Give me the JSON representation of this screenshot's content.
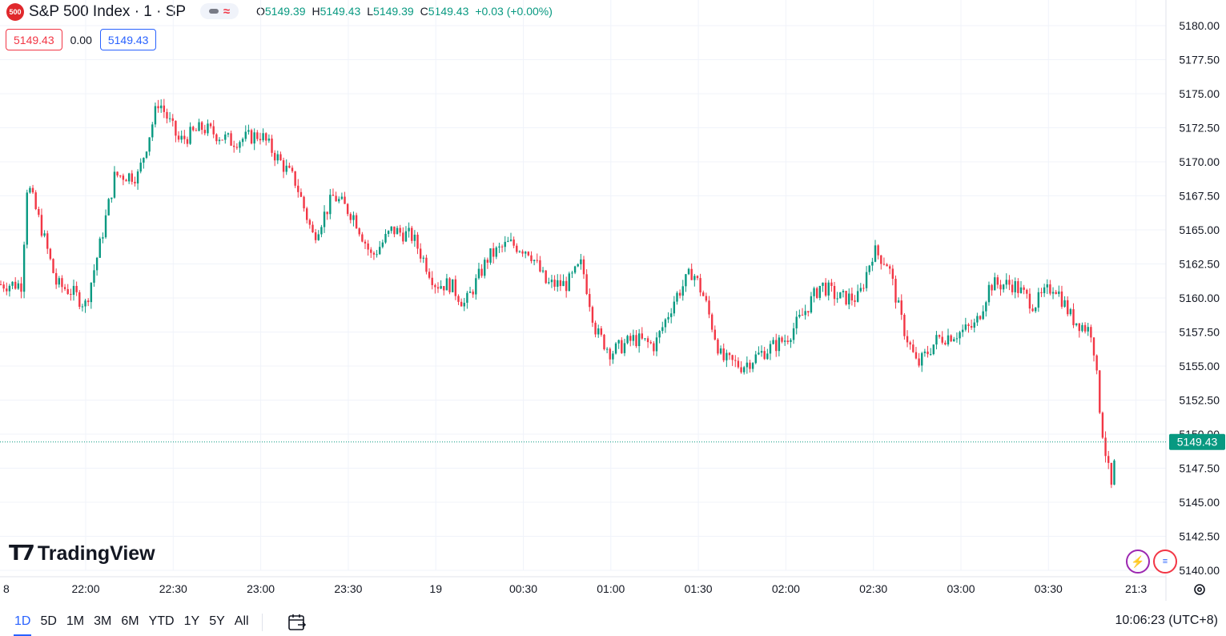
{
  "header": {
    "badge": "500",
    "symbol_title": "S&P 500 Index · 1 · SP",
    "ohlc": [
      {
        "label": "O",
        "value": "5149.39"
      },
      {
        "label": "H",
        "value": "5149.43"
      },
      {
        "label": "L",
        "value": "5149.39"
      },
      {
        "label": "C",
        "value": "5149.43"
      },
      {
        "label": "",
        "value": "+0.03 (+0.00%)"
      }
    ],
    "bid": "5149.43",
    "spread": "0.00",
    "ask": "5149.43"
  },
  "brand": "TradingView",
  "bottom_bar": {
    "ranges": [
      "1D",
      "5D",
      "1M",
      "3M",
      "6M",
      "YTD",
      "1Y",
      "5Y",
      "All"
    ],
    "active_range": "1D",
    "clock": "10:06:23 (UTC+8)"
  },
  "colors": {
    "up": "#089981",
    "down": "#f23645",
    "accent": "#2962ff"
  },
  "chart_data": {
    "type": "candlestick",
    "title": "S&P 500 Index · 1 · SP",
    "y_ticks": [
      "5180.00",
      "5177.50",
      "5175.00",
      "5172.50",
      "5170.00",
      "5167.50",
      "5165.00",
      "5162.50",
      "5160.00",
      "5157.50",
      "5155.00",
      "5152.50",
      "5150.00",
      "5147.50",
      "5145.00",
      "5142.50",
      "5140.00"
    ],
    "ylim": [
      5140.0,
      5180.0
    ],
    "x_ticks": [
      "8",
      "22:00",
      "22:30",
      "23:00",
      "23:30",
      "19",
      "00:30",
      "01:00",
      "01:30",
      "02:00",
      "02:30",
      "03:00",
      "03:30",
      "21:3"
    ],
    "last_price": "5149.43",
    "last_price_value": 5149.43,
    "grid": true,
    "path_points": [
      {
        "t": "21:38",
        "p": 5161.0
      },
      {
        "t": "21:40",
        "p": 5168.5
      },
      {
        "t": "21:45",
        "p": 5165.0
      },
      {
        "t": "21:50",
        "p": 5161.0
      },
      {
        "t": "21:55",
        "p": 5160.5
      },
      {
        "t": "22:00",
        "p": 5159.5
      },
      {
        "t": "22:05",
        "p": 5164.0
      },
      {
        "t": "22:10",
        "p": 5169.0
      },
      {
        "t": "22:18",
        "p": 5169.0
      },
      {
        "t": "22:25",
        "p": 5174.5
      },
      {
        "t": "22:32",
        "p": 5171.5
      },
      {
        "t": "22:40",
        "p": 5172.5
      },
      {
        "t": "22:50",
        "p": 5171.5
      },
      {
        "t": "23:00",
        "p": 5172.0
      },
      {
        "t": "23:05",
        "p": 5170.5
      },
      {
        "t": "23:12",
        "p": 5168.5
      },
      {
        "t": "23:18",
        "p": 5164.5
      },
      {
        "t": "23:25",
        "p": 5167.5
      },
      {
        "t": "23:32",
        "p": 5166.0
      },
      {
        "t": "23:38",
        "p": 5163.0
      },
      {
        "t": "23:45",
        "p": 5165.0
      },
      {
        "t": "23:52",
        "p": 5164.5
      },
      {
        "t": "00:00",
        "p": 5161.0
      },
      {
        "t": "00:05",
        "p": 5161.0
      },
      {
        "t": "00:10",
        "p": 5159.5
      },
      {
        "t": "00:18",
        "p": 5163.0
      },
      {
        "t": "00:25",
        "p": 5164.0
      },
      {
        "t": "00:32",
        "p": 5163.5
      },
      {
        "t": "00:38",
        "p": 5161.0
      },
      {
        "t": "00:45",
        "p": 5161.0
      },
      {
        "t": "00:50",
        "p": 5162.5
      },
      {
        "t": "00:55",
        "p": 5157.5
      },
      {
        "t": "01:00",
        "p": 5156.0
      },
      {
        "t": "01:08",
        "p": 5157.0
      },
      {
        "t": "01:15",
        "p": 5156.5
      },
      {
        "t": "01:22",
        "p": 5160.0
      },
      {
        "t": "01:28",
        "p": 5162.0
      },
      {
        "t": "01:32",
        "p": 5160.0
      },
      {
        "t": "01:38",
        "p": 5155.5
      },
      {
        "t": "01:45",
        "p": 5155.0
      },
      {
        "t": "01:52",
        "p": 5156.0
      },
      {
        "t": "02:00",
        "p": 5157.0
      },
      {
        "t": "02:05",
        "p": 5158.5
      },
      {
        "t": "02:12",
        "p": 5161.0
      },
      {
        "t": "02:18",
        "p": 5160.0
      },
      {
        "t": "02:25",
        "p": 5160.0
      },
      {
        "t": "02:30",
        "p": 5163.5
      },
      {
        "t": "02:35",
        "p": 5162.5
      },
      {
        "t": "02:40",
        "p": 5158.0
      },
      {
        "t": "02:45",
        "p": 5155.0
      },
      {
        "t": "02:52",
        "p": 5157.0
      },
      {
        "t": "03:00",
        "p": 5157.5
      },
      {
        "t": "03:05",
        "p": 5158.0
      },
      {
        "t": "03:10",
        "p": 5161.0
      },
      {
        "t": "03:18",
        "p": 5161.0
      },
      {
        "t": "03:25",
        "p": 5159.5
      },
      {
        "t": "03:32",
        "p": 5161.0
      },
      {
        "t": "03:38",
        "p": 5158.5
      },
      {
        "t": "03:45",
        "p": 5157.5
      },
      {
        "t": "03:48",
        "p": 5151.0
      },
      {
        "t": "03:50",
        "p": 5148.0
      },
      {
        "t": "03:52",
        "p": 5145.5
      },
      {
        "t": "03:53",
        "p": 5149.43
      }
    ]
  }
}
